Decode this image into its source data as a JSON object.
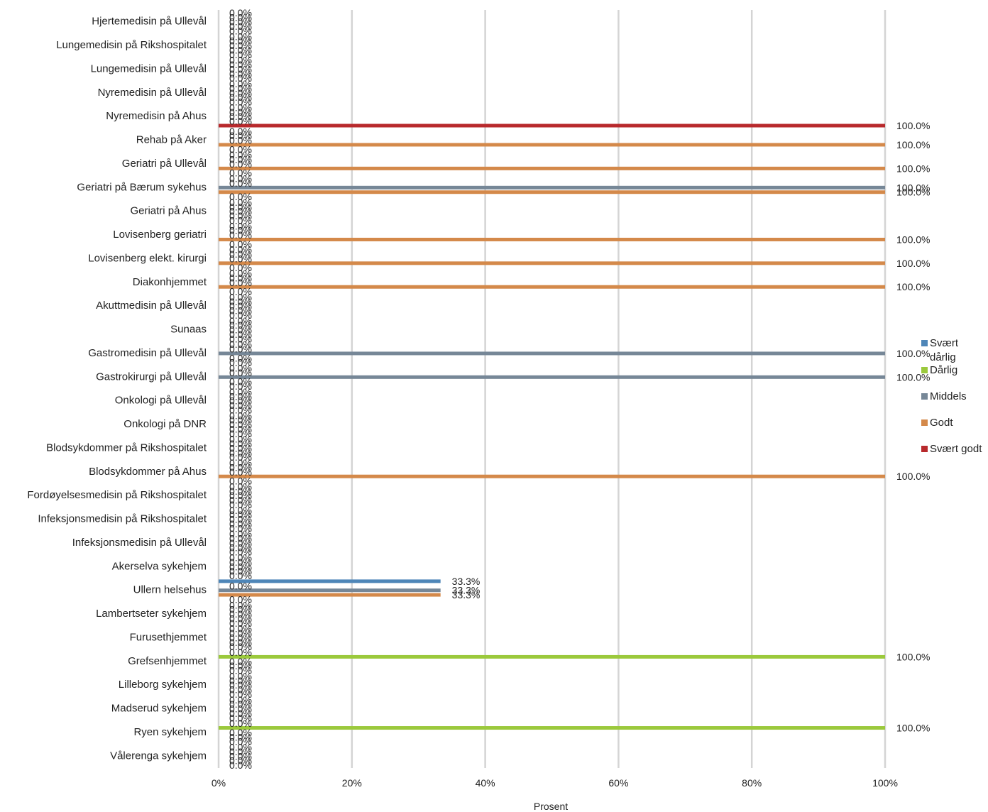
{
  "chart_data": {
    "type": "bar",
    "orientation": "horizontal",
    "title": "",
    "xlabel": "Prosent",
    "ylabel": "",
    "xlim": [
      0,
      100
    ],
    "x_ticks": [
      "0%",
      "20%",
      "40%",
      "60%",
      "80%",
      "100%"
    ],
    "grid": "vertical",
    "legend_position": "right",
    "categories": [
      "Hjertemedisin på Ullevål",
      "Lungemedisin på Rikshospitalet",
      "Lungemedisin på Ullevål",
      "Nyremedisin på Ullevål",
      "Nyremedisin på Ahus",
      "Rehab på Aker",
      "Geriatri på Ullevål",
      "Geriatri på Bærum sykehus",
      "Geriatri på Ahus",
      "Lovisenberg geriatri",
      "Lovisenberg elekt. kirurgi",
      "Diakonhjemmet",
      "Akuttmedisin på Ullevål",
      "Sunaas",
      "Gastromedisin på Ullevål",
      "Gastrokirurgi på Ullevål",
      "Onkologi på Ullevål",
      "Onkologi på DNR",
      "Blodsykdommer på Rikshospitalet",
      "Blodsykdommer på Ahus",
      "Fordøyelsesmedisin på Rikshospitalet",
      "Infeksjonsmedisin på Rikshospitalet",
      "Infeksjonsmedisin på Ullevål",
      "Akerselva sykehjem",
      "Ullern helsehus",
      "Lambertseter sykehjem",
      "Furusethjemmet",
      "Grefsenhjemmet",
      "Lilleborg sykehjem",
      "Madserud sykehjem",
      "Ryen sykehjem",
      "Vålerenga sykehjem"
    ],
    "series": [
      {
        "name": "Svært dårlig",
        "color": "#4e86b8",
        "values": [
          0,
          0,
          0,
          0,
          0,
          0,
          0,
          0,
          0,
          0,
          0,
          0,
          0,
          0,
          0,
          0,
          0,
          0,
          0,
          0,
          0,
          0,
          0,
          0,
          33.3,
          0,
          0,
          0,
          0,
          0,
          0,
          0
        ]
      },
      {
        "name": "Dårlig",
        "color": "#9bc93c",
        "values": [
          0,
          0,
          0,
          0,
          0,
          0,
          0,
          0,
          0,
          0,
          0,
          0,
          0,
          0,
          0,
          0,
          0,
          0,
          0,
          0,
          0,
          0,
          0,
          0,
          0,
          0,
          0,
          100,
          0,
          0,
          100,
          0
        ]
      },
      {
        "name": "Middels",
        "color": "#768797",
        "values": [
          0,
          0,
          0,
          0,
          0,
          0,
          0,
          100,
          0,
          0,
          0,
          0,
          0,
          0,
          100,
          100,
          0,
          0,
          0,
          0,
          0,
          0,
          0,
          0,
          33.3,
          0,
          0,
          0,
          0,
          0,
          0,
          0
        ]
      },
      {
        "name": "Godt",
        "color": "#d4894a",
        "values": [
          0,
          0,
          0,
          0,
          0,
          100,
          100,
          100,
          0,
          100,
          100,
          100,
          0,
          0,
          0,
          0,
          0,
          0,
          0,
          100,
          0,
          0,
          0,
          0,
          33.3,
          0,
          0,
          0,
          0,
          0,
          0,
          0
        ]
      },
      {
        "name": "Svært godt",
        "color": "#b8292c",
        "values": [
          0,
          0,
          0,
          0,
          100,
          0,
          0,
          0,
          0,
          0,
          0,
          0,
          0,
          0,
          0,
          0,
          0,
          0,
          0,
          0,
          0,
          0,
          0,
          0,
          0,
          0,
          0,
          0,
          0,
          0,
          0,
          0
        ]
      }
    ]
  }
}
